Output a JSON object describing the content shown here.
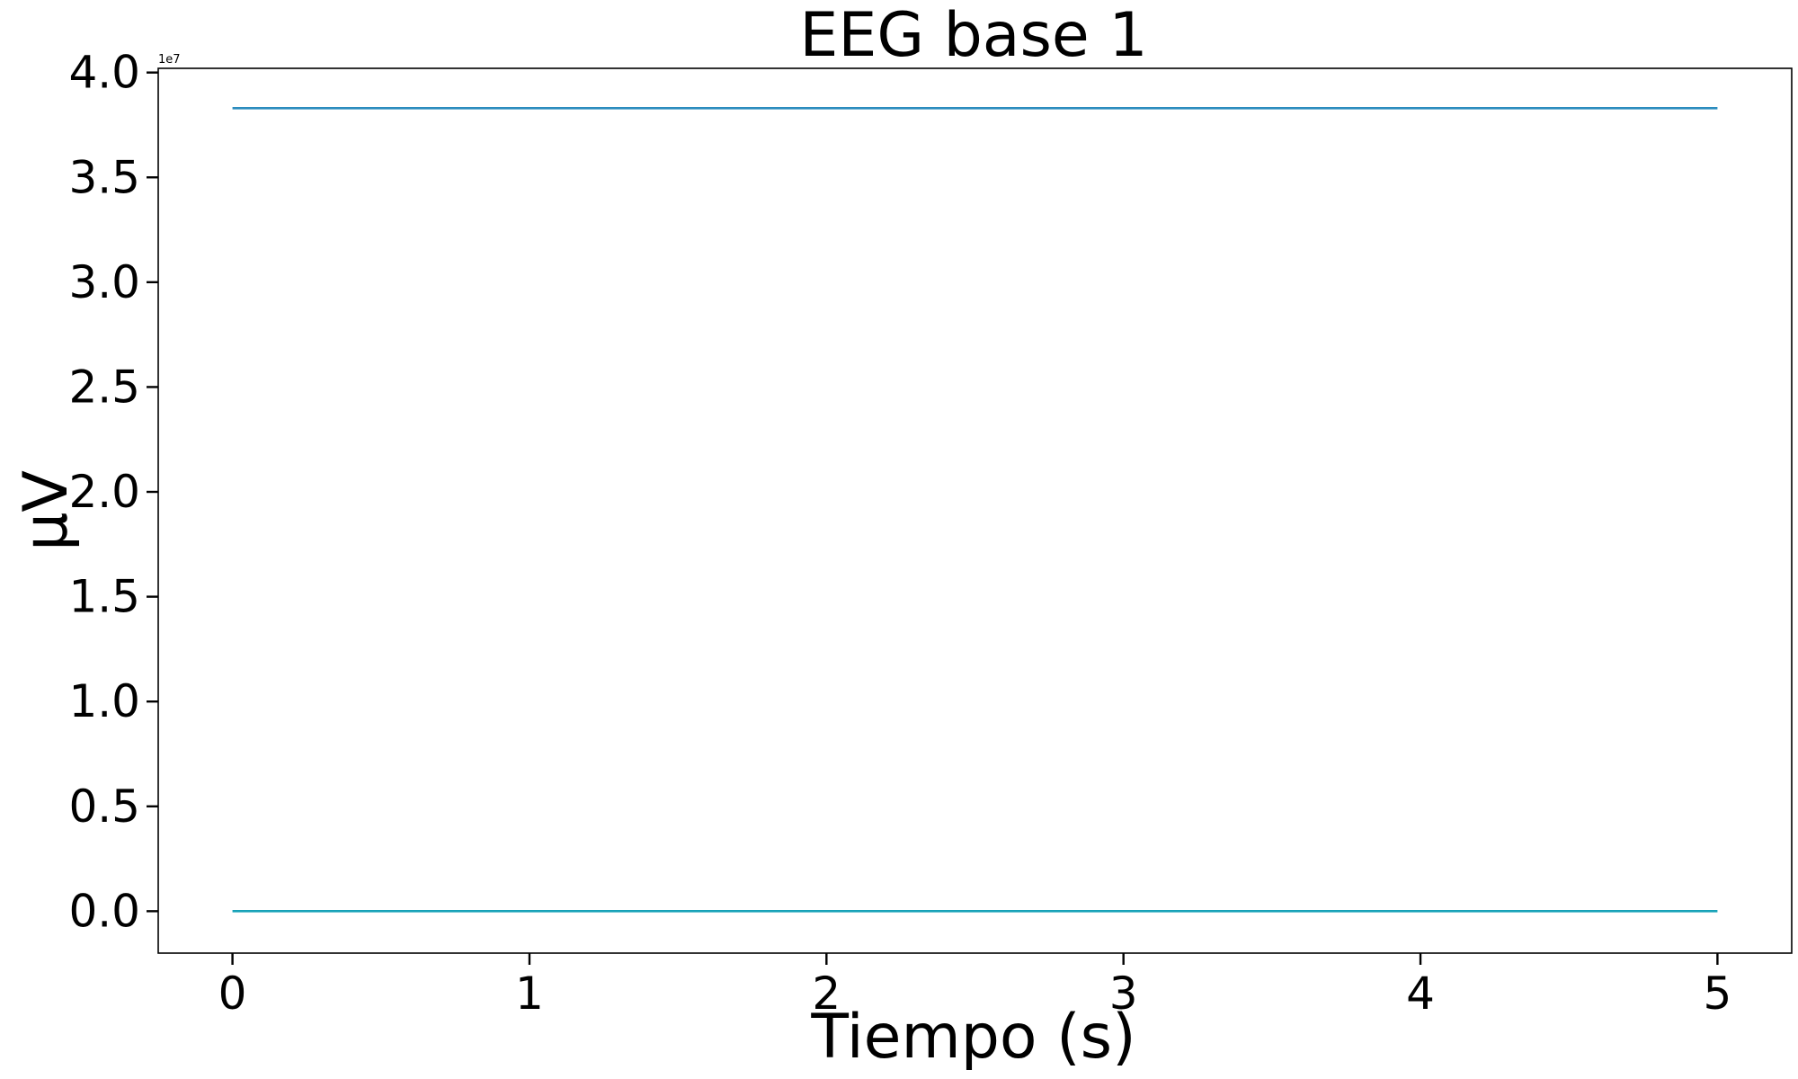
{
  "chart_data": {
    "type": "line",
    "title": "EEG base 1",
    "xlabel": "Tiempo (s)",
    "ylabel": "µV",
    "y_offset_text": "1e7",
    "y_multiplier": 10000000,
    "xlim": [
      -0.25,
      5.25
    ],
    "ylim": [
      -0.2,
      4.02
    ],
    "x_ticks": [
      0,
      1,
      2,
      3,
      4,
      5
    ],
    "x_tick_labels": [
      "0",
      "1",
      "2",
      "3",
      "4",
      "5"
    ],
    "y_ticks": [
      0.0,
      0.5,
      1.0,
      1.5,
      2.0,
      2.5,
      3.0,
      3.5,
      4.0
    ],
    "y_tick_labels": [
      "0.0",
      "0.5",
      "1.0",
      "1.5",
      "2.0",
      "2.5",
      "3.0",
      "3.5",
      "4.0"
    ],
    "grid": false,
    "series": [
      {
        "x": [
          0,
          5
        ],
        "y": [
          3.83,
          3.83
        ],
        "color": "#2b8cbe"
      },
      {
        "x": [
          0,
          5
        ],
        "y": [
          0.0,
          0.0
        ],
        "color": "#17a2b8"
      }
    ]
  }
}
